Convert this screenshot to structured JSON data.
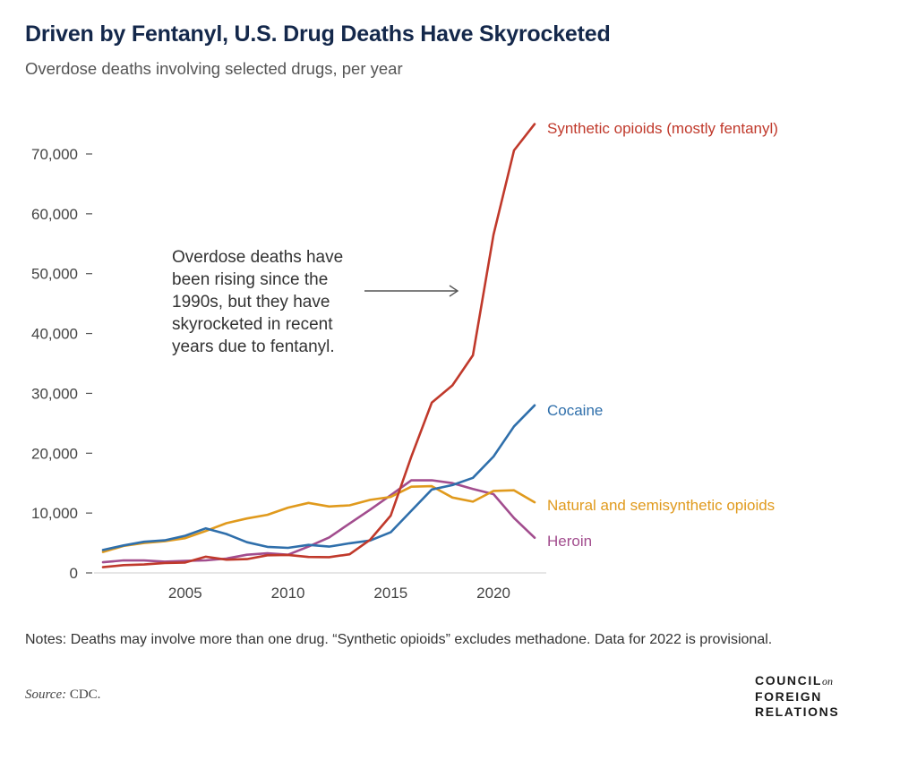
{
  "header": {
    "title": "Driven by Fentanyl, U.S. Drug Deaths Have Skyrocketed",
    "subtitle": "Overdose deaths involving selected drugs, per year"
  },
  "footer": {
    "notes": "Notes: Deaths may involve more than one drug. “Synthetic opioids” excludes methadone. Data for 2022 is provisional.",
    "source_label": "Source:",
    "source_value": "CDC.",
    "logo_line1": "COUNCIL",
    "logo_on": "on",
    "logo_line2": "FOREIGN",
    "logo_line3": "RELATIONS"
  },
  "chart_data": {
    "type": "line",
    "title": "Driven by Fentanyl, U.S. Drug Deaths Have Skyrocketed",
    "subtitle": "Overdose deaths involving selected drugs, per year",
    "xlabel": "",
    "ylabel": "",
    "xlim": [
      2001,
      2022
    ],
    "ylim": [
      0,
      70000
    ],
    "x_ticks": [
      2005,
      2010,
      2015,
      2020
    ],
    "y_ticks": [
      0,
      10000,
      20000,
      30000,
      40000,
      50000,
      60000,
      70000
    ],
    "y_tick_labels": [
      "0",
      "10,000",
      "20,000",
      "30,000",
      "40,000",
      "50,000",
      "60,000",
      "70,000"
    ],
    "x": [
      2001,
      2002,
      2003,
      2004,
      2005,
      2006,
      2007,
      2008,
      2009,
      2010,
      2011,
      2012,
      2013,
      2014,
      2015,
      2016,
      2017,
      2018,
      2019,
      2020,
      2021,
      2022
    ],
    "series": [
      {
        "name": "Synthetic opioids (mostly fentanyl)",
        "color": "#c0392b",
        "values": [
          957,
          1295,
          1400,
          1664,
          1742,
          2707,
          2213,
          2306,
          2946,
          3007,
          2666,
          2628,
          3105,
          5544,
          9580,
          19413,
          28466,
          31335,
          36359,
          56516,
          70601,
          75000
        ]
      },
      {
        "name": "Cocaine",
        "color": "#2f6fab",
        "values": [
          3833,
          4599,
          5199,
          5443,
          6208,
          7448,
          6512,
          5129,
          4350,
          4183,
          4681,
          4404,
          4944,
          5415,
          6784,
          10375,
          13942,
          14666,
          15883,
          19447,
          24486,
          28000
        ]
      },
      {
        "name": "Natural and semisynthetic opioids",
        "color": "#e09a1d",
        "values": [
          3500,
          4500,
          5000,
          5300,
          5800,
          7000,
          8300,
          9100,
          9700,
          10900,
          11700,
          11100,
          11300,
          12200,
          12700,
          14400,
          14500,
          12600,
          11900,
          13700,
          13800,
          11800
        ]
      },
      {
        "name": "Heroin",
        "color": "#a24d8e",
        "values": [
          1779,
          2089,
          2080,
          1878,
          2009,
          2088,
          2399,
          3041,
          3278,
          3036,
          4397,
          5925,
          8257,
          10574,
          12989,
          15469,
          15482,
          14996,
          14019,
          13165,
          9173,
          5871
        ]
      }
    ],
    "annotation": "Overdose deaths have been rising since the 1990s, but they have skyrocketed in recent years due to fentanyl.",
    "annotation_lines": [
      "Overdose deaths have",
      "been rising since the",
      "1990s, but they have",
      "skyrocketed in recent",
      "years due to fentanyl."
    ]
  }
}
